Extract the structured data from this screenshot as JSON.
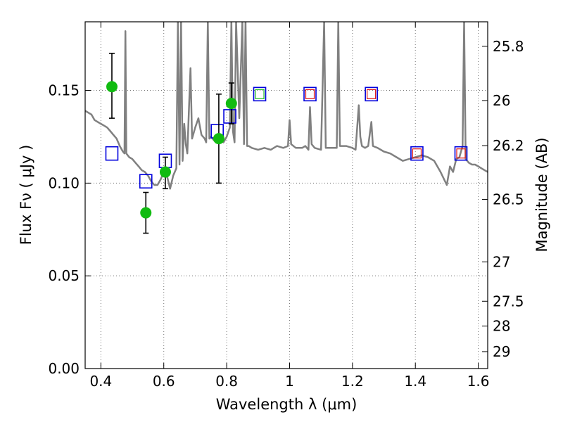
{
  "chart_data": {
    "type": "scatter",
    "xlabel": "Wavelength  λ (μm)",
    "ylabel": "Flux  Fν  ( μJy )",
    "y2label": "Magnitude (AB)",
    "xlim": [
      0.35,
      1.63
    ],
    "ylim": [
      0.0,
      0.187
    ],
    "grid": true,
    "x_ticks": [
      0.4,
      0.6,
      0.8,
      1.0,
      1.2,
      1.4,
      1.6
    ],
    "x_tick_labels": [
      "0.4",
      "0.6",
      "0.8",
      "1",
      "1.2",
      "1.4",
      "1.6"
    ],
    "y_ticks": [
      0.0,
      0.05,
      0.1,
      0.15
    ],
    "y_tick_labels": [
      "0.00",
      "0.05",
      "0.10",
      "0.15"
    ],
    "mag_ticks": [
      {
        "label": "25.8",
        "mag": 25.8
      },
      {
        "label": "26",
        "mag": 26.0
      },
      {
        "label": "26.2",
        "mag": 26.2
      },
      {
        "label": "26.5",
        "mag": 26.5
      },
      {
        "label": "27",
        "mag": 27.0
      },
      {
        "label": "27.5",
        "mag": 27.5
      },
      {
        "label": "28",
        "mag": 28.0
      },
      {
        "label": "29",
        "mag": 29.0
      }
    ],
    "colors": {
      "model": "#808080",
      "observed": "#11bb11",
      "model_box": "#0000dd",
      "inner_green": "#22bb22",
      "inner_red": "#dd1111",
      "errorbar": "#000000",
      "grid": "#777777"
    },
    "series": [
      {
        "type": "line",
        "points": [
          [
            0.35,
            0.139
          ],
          [
            0.36,
            0.138
          ],
          [
            0.37,
            0.137
          ],
          [
            0.38,
            0.134
          ],
          [
            0.39,
            0.133
          ],
          [
            0.4,
            0.132
          ],
          [
            0.41,
            0.131
          ],
          [
            0.42,
            0.13
          ],
          [
            0.43,
            0.128
          ],
          [
            0.44,
            0.126
          ],
          [
            0.45,
            0.124
          ],
          [
            0.46,
            0.12
          ],
          [
            0.47,
            0.117
          ],
          [
            0.475,
            0.116
          ],
          [
            0.478,
            0.182
          ],
          [
            0.481,
            0.116
          ],
          [
            0.49,
            0.114
          ],
          [
            0.5,
            0.113
          ],
          [
            0.51,
            0.111
          ],
          [
            0.52,
            0.109
          ],
          [
            0.53,
            0.107
          ],
          [
            0.54,
            0.106
          ],
          [
            0.55,
            0.104
          ],
          [
            0.56,
            0.101
          ],
          [
            0.57,
            0.099
          ],
          [
            0.58,
            0.099
          ],
          [
            0.59,
            0.102
          ],
          [
            0.6,
            0.106
          ],
          [
            0.605,
            0.108
          ],
          [
            0.61,
            0.104
          ],
          [
            0.62,
            0.097
          ],
          [
            0.63,
            0.104
          ],
          [
            0.64,
            0.108
          ],
          [
            0.645,
            0.187
          ],
          [
            0.65,
            0.11
          ],
          [
            0.655,
            0.187
          ],
          [
            0.66,
            0.112
          ],
          [
            0.665,
            0.132
          ],
          [
            0.67,
            0.121
          ],
          [
            0.675,
            0.116
          ],
          [
            0.68,
            0.14
          ],
          [
            0.685,
            0.162
          ],
          [
            0.69,
            0.124
          ],
          [
            0.7,
            0.13
          ],
          [
            0.71,
            0.135
          ],
          [
            0.72,
            0.126
          ],
          [
            0.73,
            0.124
          ],
          [
            0.735,
            0.122
          ],
          [
            0.74,
            0.187
          ],
          [
            0.745,
            0.124
          ],
          [
            0.75,
            0.125
          ],
          [
            0.76,
            0.123
          ],
          [
            0.77,
            0.122
          ],
          [
            0.78,
            0.124
          ],
          [
            0.79,
            0.122
          ],
          [
            0.8,
            0.125
          ],
          [
            0.81,
            0.13
          ],
          [
            0.815,
            0.187
          ],
          [
            0.82,
            0.128
          ],
          [
            0.825,
            0.122
          ],
          [
            0.83,
            0.187
          ],
          [
            0.84,
            0.135
          ],
          [
            0.85,
            0.187
          ],
          [
            0.855,
            0.121
          ],
          [
            0.86,
            0.187
          ],
          [
            0.865,
            0.12
          ],
          [
            0.87,
            0.12
          ],
          [
            0.88,
            0.119
          ],
          [
            0.9,
            0.118
          ],
          [
            0.92,
            0.119
          ],
          [
            0.94,
            0.118
          ],
          [
            0.96,
            0.12
          ],
          [
            0.98,
            0.119
          ],
          [
            0.995,
            0.12
          ],
          [
            1.0,
            0.134
          ],
          [
            1.005,
            0.121
          ],
          [
            1.02,
            0.119
          ],
          [
            1.04,
            0.119
          ],
          [
            1.05,
            0.12
          ],
          [
            1.06,
            0.118
          ],
          [
            1.065,
            0.141
          ],
          [
            1.07,
            0.121
          ],
          [
            1.08,
            0.119
          ],
          [
            1.1,
            0.118
          ],
          [
            1.11,
            0.187
          ],
          [
            1.115,
            0.119
          ],
          [
            1.12,
            0.119
          ],
          [
            1.15,
            0.119
          ],
          [
            1.155,
            0.187
          ],
          [
            1.16,
            0.12
          ],
          [
            1.18,
            0.12
          ],
          [
            1.2,
            0.119
          ],
          [
            1.21,
            0.118
          ],
          [
            1.22,
            0.142
          ],
          [
            1.225,
            0.125
          ],
          [
            1.23,
            0.12
          ],
          [
            1.24,
            0.119
          ],
          [
            1.25,
            0.12
          ],
          [
            1.26,
            0.133
          ],
          [
            1.265,
            0.12
          ],
          [
            1.28,
            0.119
          ],
          [
            1.3,
            0.117
          ],
          [
            1.32,
            0.116
          ],
          [
            1.34,
            0.114
          ],
          [
            1.36,
            0.112
          ],
          [
            1.38,
            0.113
          ],
          [
            1.4,
            0.114
          ],
          [
            1.42,
            0.115
          ],
          [
            1.44,
            0.114
          ],
          [
            1.46,
            0.112
          ],
          [
            1.48,
            0.106
          ],
          [
            1.5,
            0.099
          ],
          [
            1.51,
            0.109
          ],
          [
            1.52,
            0.106
          ],
          [
            1.53,
            0.113
          ],
          [
            1.54,
            0.114
          ],
          [
            1.55,
            0.12
          ],
          [
            1.555,
            0.187
          ],
          [
            1.56,
            0.113
          ],
          [
            1.57,
            0.111
          ],
          [
            1.58,
            0.11
          ],
          [
            1.59,
            0.11
          ],
          [
            1.6,
            0.109
          ],
          [
            1.61,
            0.108
          ],
          [
            1.62,
            0.107
          ],
          [
            1.63,
            0.106
          ]
        ]
      },
      {
        "type": "scatter-errorbar",
        "points": [
          {
            "x": 0.435,
            "y": 0.152,
            "ylo": 0.135,
            "yhi": 0.17
          },
          {
            "x": 0.543,
            "y": 0.084,
            "ylo": 0.073,
            "yhi": 0.095
          },
          {
            "x": 0.605,
            "y": 0.106,
            "ylo": 0.097,
            "yhi": 0.114
          },
          {
            "x": 0.775,
            "y": 0.124,
            "ylo": 0.1,
            "yhi": 0.148
          },
          {
            "x": 0.815,
            "y": 0.143,
            "ylo": 0.132,
            "yhi": 0.154
          }
        ]
      },
      {
        "type": "squares",
        "points": [
          {
            "x": 0.435,
            "y": 0.116
          },
          {
            "x": 0.543,
            "y": 0.101
          },
          {
            "x": 0.605,
            "y": 0.112
          },
          {
            "x": 0.77,
            "y": 0.128
          },
          {
            "x": 0.81,
            "y": 0.136
          },
          {
            "x": 0.905,
            "y": 0.148,
            "inner": "green"
          },
          {
            "x": 1.065,
            "y": 0.148,
            "inner": "red"
          },
          {
            "x": 1.26,
            "y": 0.148,
            "inner": "red"
          },
          {
            "x": 1.405,
            "y": 0.116,
            "inner": "red"
          },
          {
            "x": 1.545,
            "y": 0.116,
            "inner": "red"
          }
        ]
      }
    ]
  }
}
